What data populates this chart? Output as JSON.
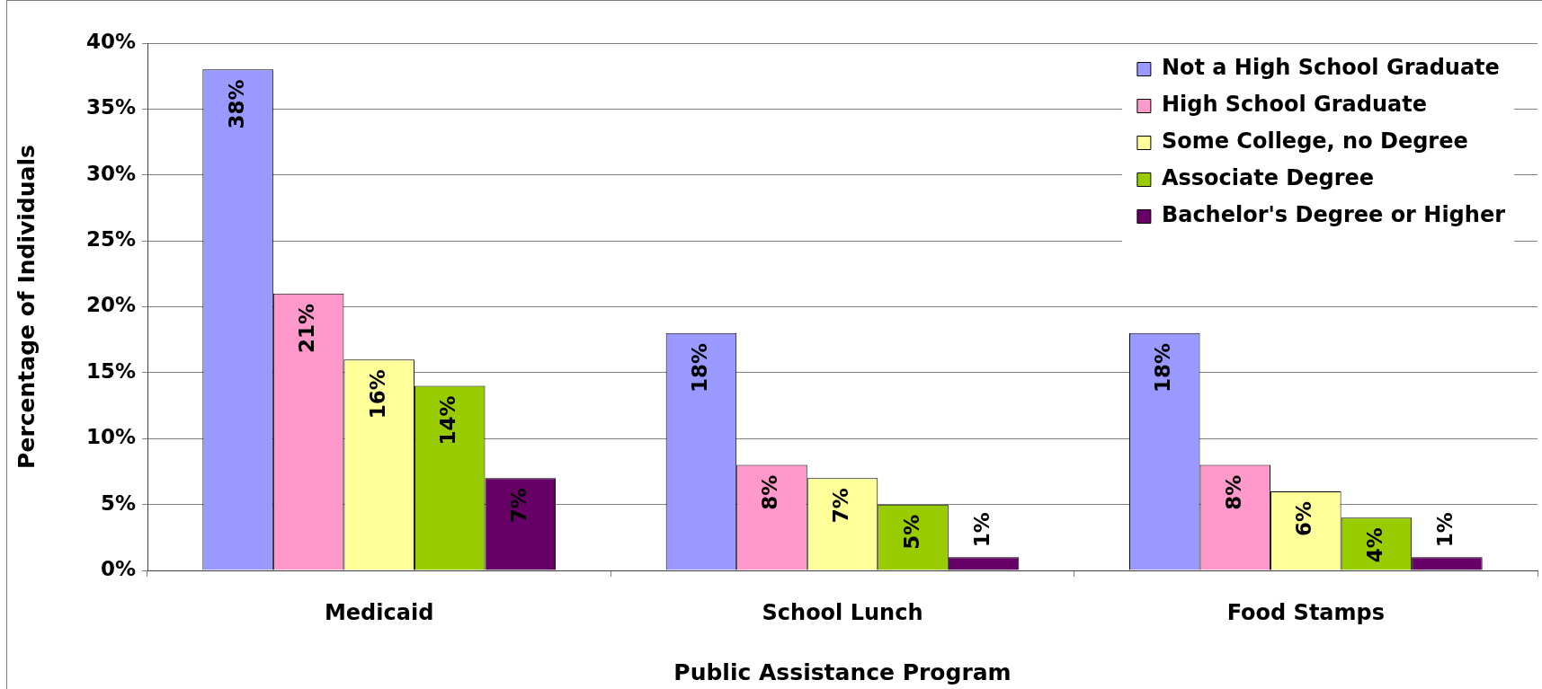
{
  "chart_data": {
    "type": "bar",
    "xlabel": "Public Assistance Program",
    "ylabel": "Percentage of Individuals",
    "categories": [
      "Medicaid",
      "School Lunch",
      "Food Stamps"
    ],
    "series": [
      {
        "name": "Not a High School Graduate",
        "color": "#9999ff",
        "values": [
          38,
          18,
          18
        ],
        "value_labels": [
          "38%",
          "18%",
          "18%"
        ]
      },
      {
        "name": "High School Graduate",
        "color": "#ff99cc",
        "values": [
          21,
          8,
          8
        ],
        "value_labels": [
          "21%",
          "8%",
          "8%"
        ]
      },
      {
        "name": "Some College, no Degree",
        "color": "#ffff99",
        "values": [
          16,
          7,
          6
        ],
        "value_labels": [
          "16%",
          "7%",
          "6%"
        ]
      },
      {
        "name": "Associate Degree",
        "color": "#99cc00",
        "values": [
          14,
          5,
          4
        ],
        "value_labels": [
          "14%",
          "5%",
          "4%"
        ]
      },
      {
        "name": "Bachelor's Degree or Higher",
        "color": "#660066",
        "values": [
          7,
          1,
          1
        ],
        "value_labels": [
          "7%",
          "1%",
          "1%"
        ]
      }
    ],
    "ylim": [
      0,
      40
    ],
    "yticks": [
      {
        "value": 0,
        "label": "0%"
      },
      {
        "value": 5,
        "label": "5%"
      },
      {
        "value": 10,
        "label": "10%"
      },
      {
        "value": 15,
        "label": "15%"
      },
      {
        "value": 20,
        "label": "20%"
      },
      {
        "value": 25,
        "label": "25%"
      },
      {
        "value": 30,
        "label": "30%"
      },
      {
        "value": 35,
        "label": "35%"
      },
      {
        "value": 40,
        "label": "40%"
      }
    ],
    "grid": "y",
    "legend": "top right"
  }
}
